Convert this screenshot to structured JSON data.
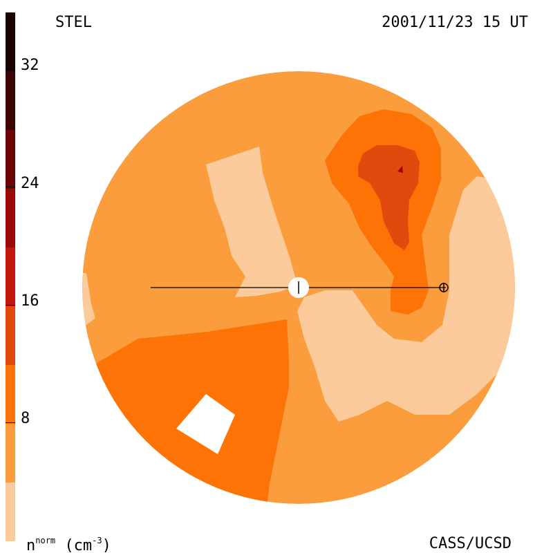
{
  "header": {
    "instrument": "STEL",
    "datetime": "2001/11/23 15 UT"
  },
  "footer": {
    "credit": "CASS/UCSD",
    "unit_base": "n",
    "unit_super": "norm",
    "unit_paren_open": " (cm",
    "unit_exp": "-3",
    "unit_paren_close": ")"
  },
  "colorbar": {
    "tick_labels": [
      "32",
      "24",
      "16",
      "8"
    ],
    "tick_values": [
      32,
      24,
      16,
      8
    ],
    "range": [
      0,
      36
    ],
    "colors": [
      "#fccb9c",
      "#fb9d3c",
      "#fd7306",
      "#e14a0c",
      "#c2170f",
      "#9b0808",
      "#6c0505",
      "#3d0404",
      "#1b0202"
    ]
  },
  "map": {
    "palette": {
      "light": "#fccb9c",
      "base": "#fb9d3c",
      "mid": "#fd7306",
      "dark": "#e14a0c",
      "darker": "#9b0808",
      "line": "#000000",
      "gap": "#ffffff"
    },
    "markers": {
      "sun_icon": "sun-icon",
      "earth_icon": "earth-icon"
    }
  }
}
